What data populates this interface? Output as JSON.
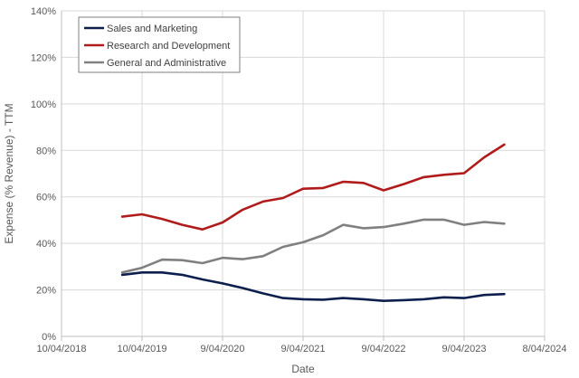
{
  "chart_data": {
    "type": "line",
    "xlabel": "Date",
    "ylabel": "Expense (% Revenue) - TTM",
    "x_ticks": [
      "10/04/2018",
      "10/04/2019",
      "9/04/2020",
      "9/04/2021",
      "9/04/2022",
      "9/04/2023",
      "8/04/2024"
    ],
    "x_tick_dates": [
      "2018-04-10",
      "2019-04-10",
      "2020-04-09",
      "2021-04-09",
      "2022-04-09",
      "2023-04-09",
      "2024-04-08"
    ],
    "xlim": [
      "2018-04-10",
      "2024-04-08"
    ],
    "y_ticks": [
      "0%",
      "20%",
      "40%",
      "60%",
      "80%",
      "100%",
      "120%",
      "140%"
    ],
    "ylim": [
      0,
      140
    ],
    "grid": true,
    "legend_position": "top-left",
    "x": [
      "2019-01-10",
      "2019-04-10",
      "2019-07-10",
      "2019-10-09",
      "2020-01-09",
      "2020-04-09",
      "2020-07-09",
      "2020-10-09",
      "2021-01-08",
      "2021-04-09",
      "2021-07-09",
      "2021-10-08",
      "2022-01-08",
      "2022-04-09",
      "2022-07-09",
      "2022-10-08",
      "2023-01-07",
      "2023-04-09",
      "2023-07-09",
      "2023-10-08"
    ],
    "series": [
      {
        "name": "Sales and Marketing",
        "color": "#0d1f4d",
        "values": [
          26.5,
          27.5,
          27.5,
          26.5,
          24.5,
          22.8,
          20.8,
          18.5,
          16.5,
          16.0,
          15.8,
          16.5,
          16.0,
          15.3,
          15.6,
          16.0,
          16.8,
          16.5,
          17.8,
          18.2
        ]
      },
      {
        "name": "Research and Development",
        "color": "#b01c1c",
        "values": [
          51.5,
          52.5,
          50.5,
          48.0,
          46.0,
          49.0,
          54.5,
          58.0,
          59.5,
          63.5,
          63.8,
          66.5,
          66.0,
          62.8,
          65.5,
          68.5,
          69.5,
          70.2,
          77.0,
          82.5
        ]
      },
      {
        "name": "General and Administrative",
        "color": "#808080",
        "values": [
          27.5,
          29.5,
          33.0,
          32.8,
          31.5,
          33.8,
          33.2,
          34.5,
          38.5,
          40.5,
          43.5,
          48.0,
          46.5,
          47.0,
          48.5,
          50.2,
          50.2,
          48.0,
          49.2,
          48.5
        ]
      }
    ]
  }
}
